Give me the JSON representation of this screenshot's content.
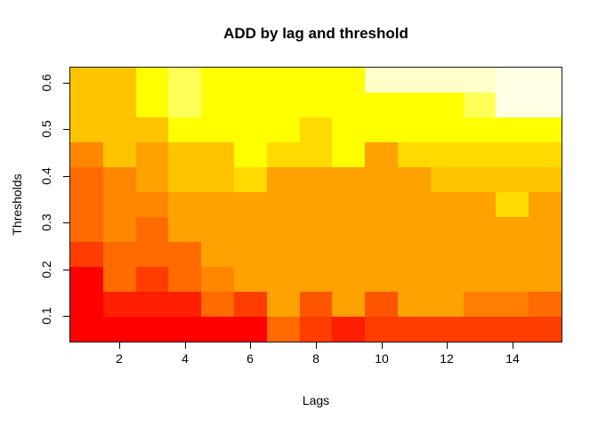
{
  "chart_data": {
    "type": "heatmap",
    "title": "ADD by lag and threshold",
    "xlabel": "Lags",
    "ylabel": "Thresholds",
    "x_tick_labels": [
      "2",
      "4",
      "6",
      "8",
      "10",
      "12",
      "14"
    ],
    "x_tick_values": [
      2,
      4,
      6,
      8,
      10,
      12,
      14
    ],
    "y_tick_labels": [
      "0.1",
      "0.2",
      "0.3",
      "0.4",
      "0.5",
      "0.6"
    ],
    "y_tick_values": [
      0.1,
      0.2,
      0.3,
      0.4,
      0.5,
      0.6
    ],
    "lags": [
      1,
      2,
      3,
      4,
      5,
      6,
      7,
      8,
      9,
      10,
      11,
      12,
      13,
      14,
      15
    ],
    "thresholds": [
      0.1,
      0.15,
      0.2,
      0.25,
      0.3,
      0.35,
      0.4,
      0.45,
      0.5,
      0.55,
      0.6
    ],
    "x_range": [
      0.5,
      15.5
    ],
    "y_range": [
      0.075,
      0.625
    ],
    "grid": "off",
    "legend": "none",
    "palette": {
      "R": "#FF0000",
      "R2": "#FF1E00",
      "O4": "#FF3D00",
      "O5": "#FF5500",
      "O3": "#FF6B00",
      "Ob": "#FF7E00",
      "O2": "#FF8700",
      "O1": "#FFA100",
      "A": "#FFC300",
      "G": "#FFDA00",
      "Y": "#FFFF00",
      "P": "#FFFF58",
      "C": "#FFFFC9",
      "C2": "#FFFFE3"
    },
    "color_matrix_rows_top_to_bottom": [
      [
        "A",
        "A",
        "Y",
        "P",
        "Y",
        "Y",
        "Y",
        "Y",
        "Y",
        "C",
        "C",
        "C",
        "C",
        "C2",
        "C2"
      ],
      [
        "A",
        "A",
        "Y",
        "P",
        "Y",
        "Y",
        "Y",
        "Y",
        "Y",
        "Y",
        "Y",
        "Y",
        "P",
        "C2",
        "C2"
      ],
      [
        "A",
        "A",
        "A",
        "Y",
        "Y",
        "Y",
        "Y",
        "G",
        "Y",
        "Y",
        "Y",
        "Y",
        "Y",
        "Y",
        "Y"
      ],
      [
        "O2",
        "A",
        "O1",
        "A",
        "A",
        "Y",
        "G",
        "G",
        "Y",
        "O1",
        "G",
        "G",
        "G",
        "G",
        "G"
      ],
      [
        "O3",
        "O2",
        "O1",
        "A",
        "A",
        "G",
        "O1",
        "O1",
        "O1",
        "O1",
        "O1",
        "A",
        "A",
        "A",
        "A"
      ],
      [
        "O3",
        "O2",
        "O2",
        "O1",
        "O1",
        "O1",
        "O1",
        "O1",
        "O1",
        "O1",
        "O1",
        "O1",
        "O1",
        "G",
        "O1"
      ],
      [
        "O3",
        "O2",
        "O3",
        "O1",
        "O1",
        "O1",
        "O1",
        "O1",
        "O1",
        "O1",
        "O1",
        "O1",
        "O1",
        "O1",
        "O1"
      ],
      [
        "O4",
        "O3",
        "O3",
        "O3",
        "O1",
        "O1",
        "O1",
        "O1",
        "O1",
        "O1",
        "O1",
        "O1",
        "O1",
        "O1",
        "O1"
      ],
      [
        "R",
        "O3",
        "O4",
        "O3",
        "O2",
        "O1",
        "O1",
        "O1",
        "O1",
        "O1",
        "O1",
        "O1",
        "O1",
        "O1",
        "O1"
      ],
      [
        "R",
        "R2",
        "R2",
        "R2",
        "O3",
        "O4",
        "O1",
        "O5",
        "O1",
        "O5",
        "O1",
        "O1",
        "Ob",
        "Ob",
        "O3"
      ],
      [
        "R",
        "R",
        "R",
        "R",
        "R",
        "R",
        "O3",
        "O4",
        "R2",
        "O4",
        "O4",
        "O4",
        "O4",
        "O4",
        "O4"
      ]
    ],
    "row_threshold_order_top_to_bottom": [
      0.6,
      0.55,
      0.5,
      0.45,
      0.4,
      0.35,
      0.3,
      0.25,
      0.2,
      0.15,
      0.1
    ]
  }
}
